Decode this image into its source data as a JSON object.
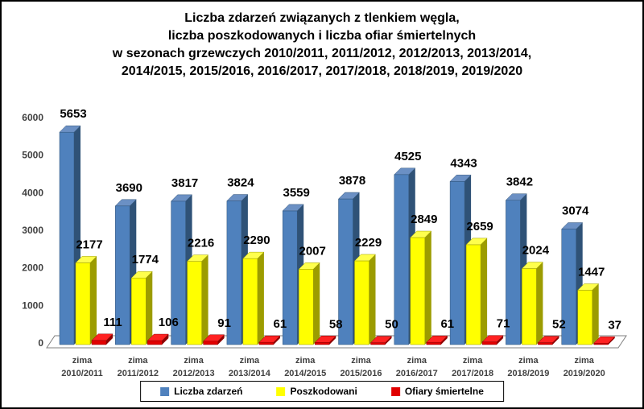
{
  "title": {
    "lines": [
      "Liczba zdarzeń związanych z tlenkiem węgla,",
      "liczba poszkodowanych i liczba ofiar śmiertelnych",
      "w sezonach grzewczych 2010/2011, 2011/2012, 2012/2013, 2013/2014,",
      "2014/2015, 2015/2016, 2016/2017, 2017/2018, 2018/2019, 2019/2020"
    ]
  },
  "chart_data": {
    "type": "bar",
    "style": "3d-clustered-column",
    "categories": [
      {
        "top": "zima",
        "bottom": "2010/2011"
      },
      {
        "top": "zima",
        "bottom": "2011/2012"
      },
      {
        "top": "zima",
        "bottom": "2012/2013"
      },
      {
        "top": "zima",
        "bottom": "2013/2014"
      },
      {
        "top": "zima",
        "bottom": "2014/2015"
      },
      {
        "top": "zima",
        "bottom": "2015/2016"
      },
      {
        "top": "zima",
        "bottom": "2016/2017"
      },
      {
        "top": "zima",
        "bottom": "2017/2018"
      },
      {
        "top": "zima",
        "bottom": "2018/2019"
      },
      {
        "top": "zima",
        "bottom": "2019/2020"
      }
    ],
    "series": [
      {
        "key": "liczba-zdarzen",
        "name": "Liczba zdarzeń",
        "color": "#4f81bd",
        "color_top": "#6b90c4",
        "color_side": "#2f5277",
        "values": [
          5653,
          3690,
          3817,
          3824,
          3559,
          3878,
          4525,
          4343,
          3842,
          3074
        ]
      },
      {
        "key": "poszkodowani",
        "name": "Poszkodowani",
        "color": "#ffff00",
        "color_top": "#ffff4d",
        "color_side": "#9c9c00",
        "values": [
          2177,
          1774,
          2216,
          2290,
          2007,
          2229,
          2849,
          2659,
          2024,
          1447
        ]
      },
      {
        "key": "ofiary-smiertelne",
        "name": "Ofiary śmiertelne",
        "color": "#e10000",
        "color_top": "#ff2222",
        "color_side": "#8d0000",
        "values": [
          111,
          106,
          91,
          61,
          58,
          50,
          61,
          71,
          52,
          37
        ]
      }
    ],
    "ylim": [
      0,
      6000
    ],
    "yticks": [
      0,
      1000,
      2000,
      3000,
      4000,
      5000,
      6000
    ],
    "grid": false,
    "legend_position": "bottom",
    "data_labels": true
  }
}
